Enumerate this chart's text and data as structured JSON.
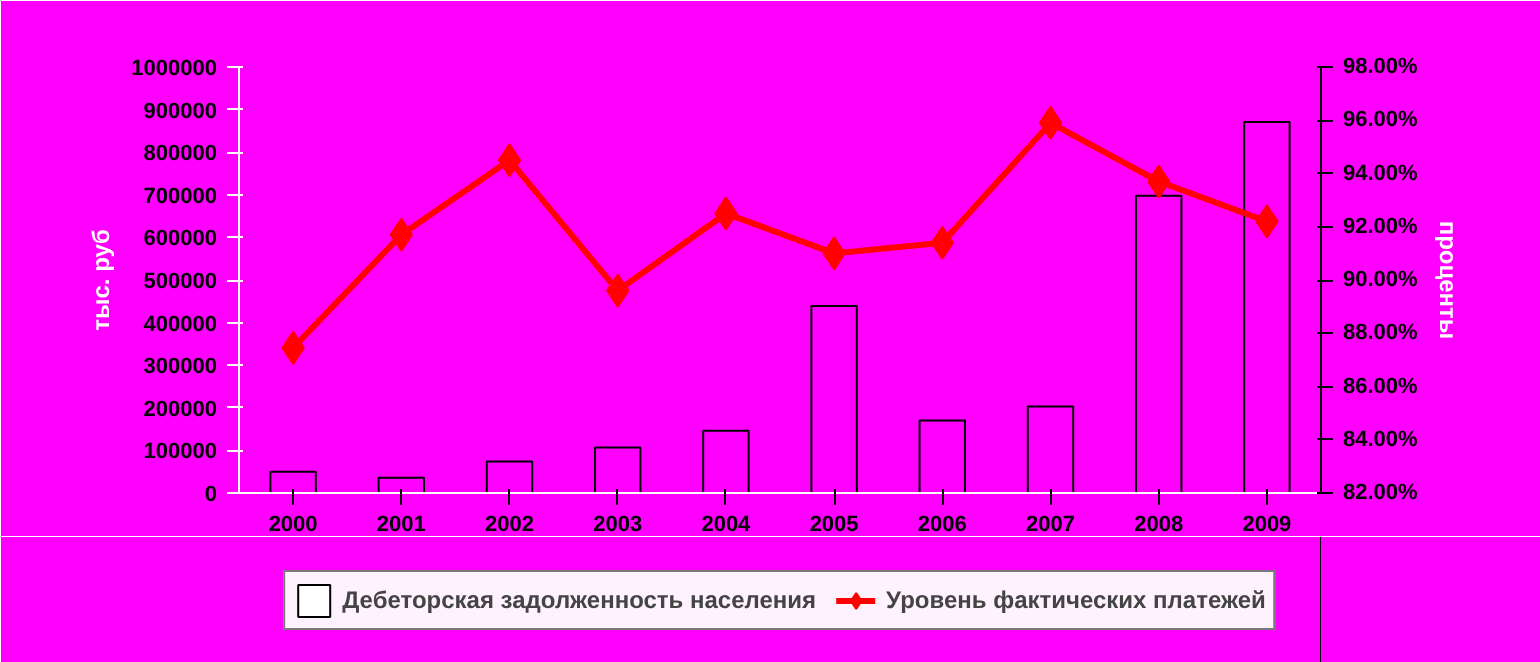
{
  "chart_data": {
    "type": "bar",
    "categories": [
      "2000",
      "2001",
      "2002",
      "2003",
      "2004",
      "2005",
      "2006",
      "2007",
      "2008",
      "2009"
    ],
    "ylabel": "тыс. руб",
    "y2label": "проценты",
    "series": [
      {
        "name": "Дебеторская задолженность населения",
        "color": "#ff00ff",
        "values": [
          50000,
          36000,
          74000,
          107000,
          146000,
          439000,
          170000,
          203000,
          698000,
          871000
        ]
      },
      {
        "name": "Уровень фактических платежей",
        "type": "line",
        "axis": "y2",
        "color": "#ff0000",
        "marker": "diamond",
        "values": [
          87.45,
          91.7,
          94.5,
          89.6,
          92.5,
          91.0,
          91.4,
          95.9,
          93.7,
          92.2
        ]
      }
    ],
    "ylim": [
      0,
      1000000
    ],
    "yticks": [
      0,
      100000,
      200000,
      300000,
      400000,
      500000,
      600000,
      700000,
      800000,
      900000,
      1000000
    ],
    "y2lim": [
      82,
      98
    ],
    "y2ticks": [
      {
        "value": 82,
        "label": "82.00%"
      },
      {
        "value": 84,
        "label": "84.00%"
      },
      {
        "value": 86,
        "label": "86.00%"
      },
      {
        "value": 88,
        "label": "88.00%"
      },
      {
        "value": 90,
        "label": "90.00%"
      },
      {
        "value": 92,
        "label": "92.00%"
      },
      {
        "value": 94,
        "label": "94.00%"
      },
      {
        "value": 96,
        "label": "96.00%"
      },
      {
        "value": 98,
        "label": "98.00%"
      }
    ],
    "grid": false,
    "legend": "bottom"
  }
}
